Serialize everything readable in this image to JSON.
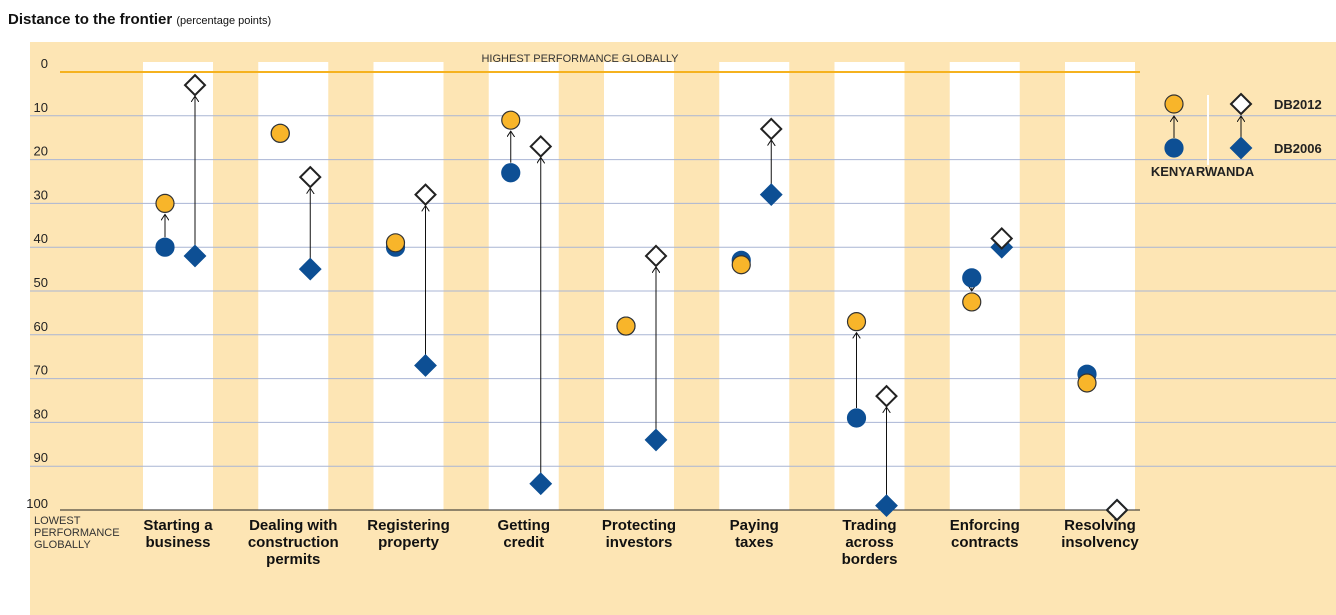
{
  "chart_data": {
    "type": "dot-arrow",
    "title": "Distance to the frontier",
    "subtitle": "(percentage points)",
    "top_label": "HIGHEST PERFORMANCE GLOBALLY",
    "bottom_label": [
      "LOWEST",
      "PERFORMANCE",
      "GLOBALLY"
    ],
    "categories": [
      [
        "Starting a",
        "business"
      ],
      [
        "Dealing with",
        "construction",
        "permits"
      ],
      [
        "Registering",
        "property"
      ],
      [
        "Getting",
        "credit"
      ],
      [
        "Protecting",
        "investors"
      ],
      [
        "Paying",
        "taxes"
      ],
      [
        "Trading",
        "across",
        "borders"
      ],
      [
        "Enforcing",
        "contracts"
      ],
      [
        "Resolving",
        "insolvency"
      ]
    ],
    "ylim": [
      0,
      100
    ],
    "yticks": [
      0,
      10,
      20,
      30,
      40,
      50,
      60,
      70,
      80,
      90,
      100
    ],
    "y_reversed": true,
    "grid": true,
    "groups": [
      {
        "name": "KENYA",
        "marker": "circle",
        "series": [
          {
            "name": "DB2012",
            "color": "#f8b52a",
            "values": [
              30,
              14,
              39,
              11,
              58,
              44,
              57,
              52.5,
              71
            ]
          },
          {
            "name": "DB2006",
            "color": "#0d4f94",
            "values": [
              40,
              14,
              40,
              23,
              58,
              43,
              79,
              47,
              69
            ]
          }
        ]
      },
      {
        "name": "RWANDA",
        "marker": "diamond",
        "series": [
          {
            "name": "DB2012",
            "color": "#ffffff",
            "values": [
              3,
              24,
              28,
              17,
              42,
              13,
              74,
              38,
              100
            ]
          },
          {
            "name": "DB2006",
            "color": "#0d4f94",
            "values": [
              42,
              45,
              67,
              94,
              84,
              28,
              99,
              40,
              100
            ]
          }
        ]
      }
    ]
  }
}
